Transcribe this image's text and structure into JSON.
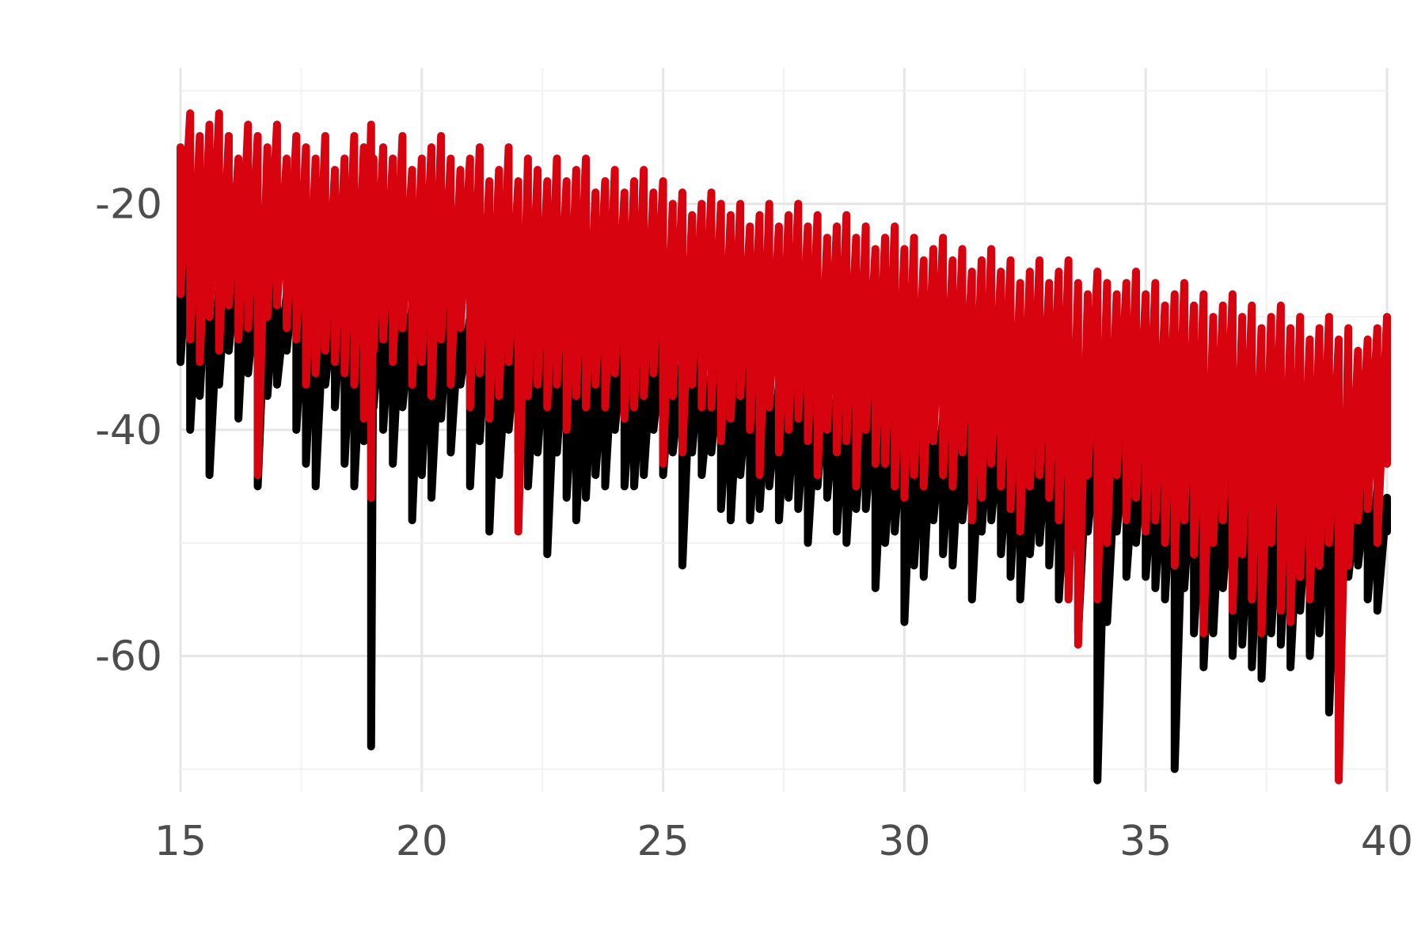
{
  "chart_data": {
    "type": "line",
    "title": "",
    "xlabel": "",
    "ylabel": "",
    "xlim": [
      15,
      40
    ],
    "ylim": [
      -72,
      -8
    ],
    "x_ticks": [
      15,
      20,
      25,
      30,
      35,
      40
    ],
    "y_ticks": [
      -20,
      -40,
      -60
    ],
    "x_tick_labels": [
      "15",
      "20",
      "25",
      "30",
      "35",
      "40"
    ],
    "y_tick_labels": [
      "-20",
      "-40",
      "-60"
    ],
    "grid": true,
    "legend": "none",
    "series": [
      {
        "color": "#000000",
        "x": [
          15.0,
          15.2,
          15.4,
          15.6,
          15.8,
          16.0,
          16.2,
          16.4,
          16.6,
          16.8,
          17.0,
          17.2,
          17.4,
          17.6,
          17.8,
          18.0,
          18.2,
          18.4,
          18.6,
          18.8,
          18.95,
          19.0,
          19.2,
          19.4,
          19.6,
          19.8,
          20.0,
          20.2,
          20.4,
          20.6,
          20.8,
          21.0,
          21.2,
          21.4,
          21.6,
          21.8,
          22.0,
          22.2,
          22.4,
          22.6,
          22.8,
          23.0,
          23.2,
          23.4,
          23.6,
          23.8,
          24.0,
          24.2,
          24.4,
          24.6,
          24.8,
          25.0,
          25.2,
          25.4,
          25.6,
          25.8,
          26.0,
          26.2,
          26.4,
          26.6,
          26.8,
          27.0,
          27.2,
          27.4,
          27.6,
          27.8,
          28.0,
          28.2,
          28.4,
          28.6,
          28.8,
          29.0,
          29.2,
          29.4,
          29.6,
          29.8,
          30.0,
          30.2,
          30.4,
          30.6,
          30.8,
          31.0,
          31.2,
          31.4,
          31.6,
          31.8,
          32.0,
          32.2,
          32.4,
          32.6,
          32.8,
          33.0,
          33.2,
          33.4,
          33.6,
          33.8,
          34.0,
          34.2,
          34.4,
          34.6,
          34.8,
          35.0,
          35.2,
          35.4,
          35.6,
          35.8,
          36.0,
          36.2,
          36.4,
          36.6,
          36.8,
          37.0,
          37.2,
          37.4,
          37.6,
          37.8,
          38.0,
          38.2,
          38.4,
          38.6,
          38.8,
          39.0,
          39.2,
          39.4,
          39.6,
          39.8,
          40.0
        ],
        "low": [
          -34,
          -40,
          -37,
          -44,
          -36,
          -33,
          -39,
          -35,
          -45,
          -37,
          -36,
          -33,
          -40,
          -43,
          -45,
          -36,
          -38,
          -43,
          -45,
          -41,
          -68,
          -38,
          -40,
          -43,
          -38,
          -48,
          -44,
          -46,
          -39,
          -42,
          -36,
          -45,
          -41,
          -49,
          -44,
          -40,
          -42,
          -45,
          -42,
          -51,
          -42,
          -46,
          -48,
          -46,
          -44,
          -45,
          -40,
          -45,
          -45,
          -44,
          -40,
          -44,
          -42,
          -52,
          -42,
          -44,
          -42,
          -47,
          -48,
          -44,
          -48,
          -47,
          -45,
          -48,
          -46,
          -47,
          -50,
          -45,
          -46,
          -49,
          -50,
          -47,
          -47,
          -54,
          -50,
          -49,
          -57,
          -52,
          -53,
          -48,
          -51,
          -52,
          -48,
          -55,
          -49,
          -48,
          -51,
          -53,
          -55,
          -51,
          -50,
          -52,
          -55,
          -53,
          -58,
          -49,
          -71,
          -57,
          -49,
          -53,
          -50,
          -53,
          -54,
          -55,
          -70,
          -54,
          -58,
          -61,
          -58,
          -54,
          -60,
          -59,
          -61,
          -62,
          -58,
          -59,
          -61,
          -56,
          -60,
          -58,
          -65,
          -56,
          -53,
          -52,
          -55,
          -56,
          -49
        ],
        "high": [
          -22,
          -20,
          -24,
          -21,
          -27,
          -23,
          -24,
          -22,
          -26,
          -24,
          -25,
          -28,
          -24,
          -26,
          -25,
          -27,
          -28,
          -24,
          -26,
          -28,
          -27,
          -26,
          -28,
          -27,
          -26,
          -29,
          -27,
          -28,
          -29,
          -26,
          -29,
          -30,
          -28,
          -27,
          -29,
          -31,
          -30,
          -28,
          -31,
          -30,
          -31,
          -30,
          -32,
          -31,
          -29,
          -32,
          -30,
          -31,
          -33,
          -32,
          -31,
          -32,
          -33,
          -34,
          -31,
          -32,
          -35,
          -33,
          -34,
          -33,
          -34,
          -35,
          -33,
          -36,
          -35,
          -34,
          -35,
          -36,
          -34,
          -37,
          -36,
          -35,
          -36,
          -37,
          -36,
          -38,
          -37,
          -36,
          -38,
          -37,
          -39,
          -38,
          -37,
          -39,
          -38,
          -37,
          -39,
          -40,
          -38,
          -39,
          -40,
          -39,
          -38,
          -40,
          -39,
          -41,
          -40,
          -39,
          -41,
          -40,
          -41,
          -40,
          -42,
          -41,
          -40,
          -42,
          -41,
          -43,
          -42,
          -41,
          -43,
          -42,
          -44,
          -43,
          -42,
          -44,
          -43,
          -44,
          -43,
          -45,
          -44,
          -43,
          -44,
          -45,
          -44,
          -45,
          -46
        ]
      },
      {
        "color": "#d7030f",
        "x": [
          15.0,
          15.2,
          15.4,
          15.6,
          15.8,
          16.0,
          16.2,
          16.4,
          16.6,
          16.8,
          17.0,
          17.2,
          17.4,
          17.6,
          17.8,
          18.0,
          18.2,
          18.4,
          18.6,
          18.8,
          18.95,
          19.0,
          19.2,
          19.4,
          19.6,
          19.8,
          20.0,
          20.2,
          20.4,
          20.6,
          20.8,
          21.0,
          21.2,
          21.4,
          21.6,
          21.8,
          22.0,
          22.2,
          22.4,
          22.6,
          22.8,
          23.0,
          23.2,
          23.4,
          23.6,
          23.8,
          24.0,
          24.2,
          24.4,
          24.6,
          24.8,
          25.0,
          25.2,
          25.4,
          25.6,
          25.8,
          26.0,
          26.2,
          26.4,
          26.6,
          26.8,
          27.0,
          27.2,
          27.4,
          27.6,
          27.8,
          28.0,
          28.2,
          28.4,
          28.6,
          28.8,
          29.0,
          29.2,
          29.4,
          29.6,
          29.8,
          30.0,
          30.2,
          30.4,
          30.6,
          30.8,
          31.0,
          31.2,
          31.4,
          31.6,
          31.8,
          32.0,
          32.2,
          32.4,
          32.6,
          32.8,
          33.0,
          33.2,
          33.4,
          33.6,
          33.8,
          34.0,
          34.2,
          34.4,
          34.6,
          34.8,
          35.0,
          35.2,
          35.4,
          35.6,
          35.8,
          36.0,
          36.2,
          36.4,
          36.6,
          36.8,
          37.0,
          37.2,
          37.4,
          37.6,
          37.8,
          38.0,
          38.2,
          38.4,
          38.6,
          38.8,
          39.0,
          39.2,
          39.4,
          39.6,
          39.8,
          40.0
        ],
        "low": [
          -28,
          -32,
          -34,
          -30,
          -33,
          -29,
          -32,
          -31,
          -44,
          -30,
          -29,
          -31,
          -32,
          -36,
          -35,
          -33,
          -34,
          -35,
          -36,
          -39,
          -46,
          -33,
          -32,
          -34,
          -31,
          -36,
          -34,
          -37,
          -32,
          -36,
          -31,
          -38,
          -35,
          -39,
          -37,
          -34,
          -49,
          -37,
          -36,
          -38,
          -36,
          -40,
          -37,
          -38,
          -36,
          -38,
          -35,
          -39,
          -38,
          -37,
          -35,
          -43,
          -37,
          -42,
          -36,
          -38,
          -38,
          -41,
          -39,
          -37,
          -40,
          -44,
          -38,
          -42,
          -40,
          -39,
          -41,
          -44,
          -40,
          -42,
          -41,
          -45,
          -40,
          -43,
          -43,
          -45,
          -46,
          -44,
          -45,
          -41,
          -44,
          -45,
          -42,
          -48,
          -46,
          -43,
          -45,
          -47,
          -49,
          -45,
          -44,
          -46,
          -48,
          -55,
          -59,
          -44,
          -55,
          -50,
          -44,
          -48,
          -46,
          -49,
          -48,
          -50,
          -52,
          -48,
          -51,
          -58,
          -50,
          -48,
          -56,
          -51,
          -55,
          -58,
          -50,
          -56,
          -57,
          -53,
          -55,
          -52,
          -50,
          -71,
          -52,
          -48,
          -47,
          -50,
          -43
        ],
        "high": [
          -15,
          -12,
          -14,
          -13,
          -12,
          -14,
          -16,
          -13,
          -14,
          -15,
          -13,
          -16,
          -14,
          -15,
          -16,
          -14,
          -17,
          -16,
          -14,
          -15,
          -13,
          -16,
          -15,
          -16,
          -14,
          -17,
          -16,
          -15,
          -14,
          -16,
          -17,
          -16,
          -15,
          -18,
          -17,
          -15,
          -18,
          -16,
          -17,
          -18,
          -16,
          -18,
          -17,
          -16,
          -19,
          -18,
          -17,
          -19,
          -18,
          -17,
          -19,
          -18,
          -20,
          -19,
          -21,
          -20,
          -19,
          -20,
          -21,
          -20,
          -22,
          -21,
          -20,
          -22,
          -21,
          -20,
          -22,
          -21,
          -23,
          -22,
          -21,
          -23,
          -22,
          -24,
          -23,
          -22,
          -24,
          -23,
          -25,
          -24,
          -23,
          -25,
          -24,
          -26,
          -25,
          -24,
          -26,
          -25,
          -27,
          -26,
          -25,
          -27,
          -26,
          -25,
          -27,
          -28,
          -26,
          -27,
          -28,
          -27,
          -26,
          -28,
          -27,
          -29,
          -28,
          -27,
          -29,
          -28,
          -30,
          -29,
          -28,
          -30,
          -29,
          -31,
          -30,
          -29,
          -31,
          -30,
          -32,
          -31,
          -30,
          -32,
          -31,
          -33,
          -32,
          -31,
          -30
        ]
      }
    ]
  }
}
